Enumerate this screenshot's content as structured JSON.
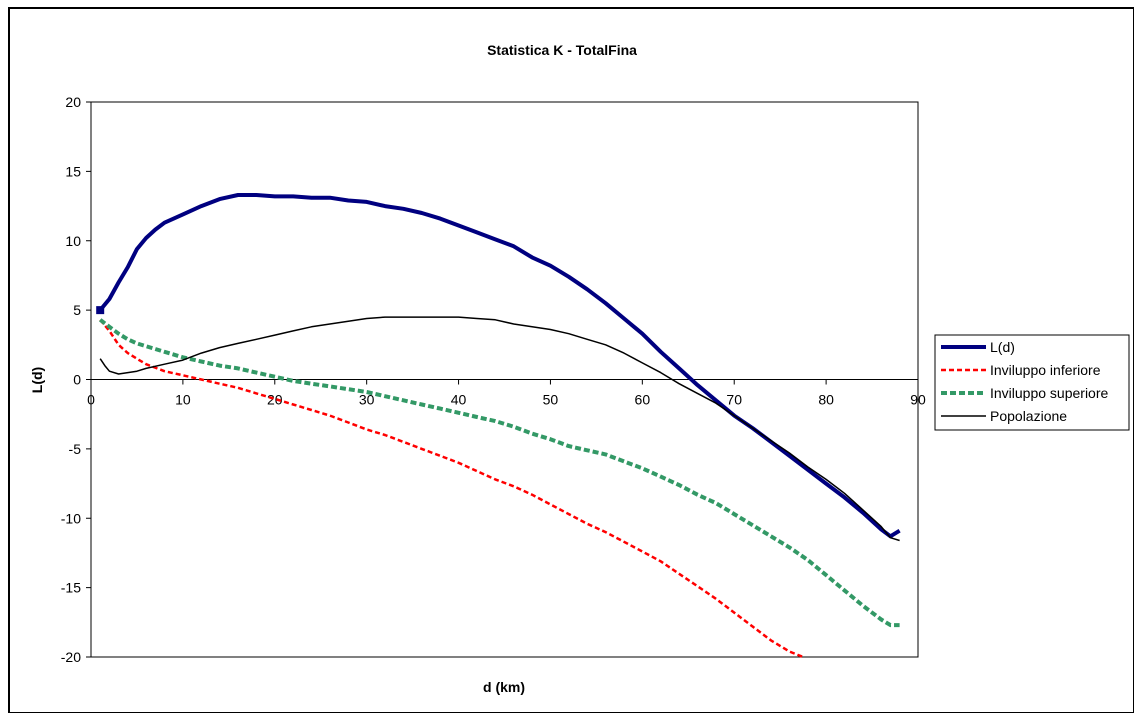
{
  "chart_data": {
    "type": "line",
    "title": "Statistica K - TotalFina",
    "xlabel": "d (km)",
    "ylabel": "L(d)",
    "xlim": [
      0,
      90
    ],
    "ylim": [
      -20,
      20
    ],
    "xticks": [
      "0",
      "10",
      "20",
      "30",
      "40",
      "50",
      "60",
      "70",
      "80",
      "90"
    ],
    "yticks": [
      "20",
      "15",
      "10",
      "5",
      "0",
      "-5",
      "-10",
      "-15",
      "-20"
    ],
    "grid": false,
    "legend_position": "right",
    "series": [
      {
        "name": "L(d)",
        "color": "#000080",
        "style": "solid-thick",
        "marker_at_start": true,
        "x": [
          1,
          2,
          3,
          4,
          5,
          6,
          7,
          8,
          9,
          10,
          12,
          14,
          16,
          18,
          20,
          22,
          24,
          26,
          28,
          30,
          32,
          34,
          36,
          38,
          40,
          42,
          44,
          46,
          48,
          50,
          52,
          54,
          56,
          58,
          60,
          62,
          64,
          66,
          68,
          70,
          72,
          74,
          76,
          78,
          80,
          82,
          84,
          86,
          87,
          88
        ],
        "y": [
          5.0,
          5.8,
          7.0,
          8.1,
          9.4,
          10.2,
          10.8,
          11.3,
          11.6,
          11.9,
          12.5,
          13.0,
          13.3,
          13.3,
          13.2,
          13.2,
          13.1,
          13.1,
          12.9,
          12.8,
          12.5,
          12.3,
          12.0,
          11.6,
          11.1,
          10.6,
          10.1,
          9.6,
          8.8,
          8.2,
          7.4,
          6.5,
          5.5,
          4.4,
          3.3,
          2.0,
          0.8,
          -0.4,
          -1.5,
          -2.6,
          -3.5,
          -4.5,
          -5.5,
          -6.5,
          -7.5,
          -8.5,
          -9.6,
          -10.8,
          -11.3,
          -10.9
        ]
      },
      {
        "name": "Inviluppo inferiore",
        "color": "#FF0000",
        "style": "dashed",
        "x": [
          1,
          2,
          3,
          4,
          5,
          6,
          8,
          10,
          12,
          14,
          16,
          18,
          20,
          22,
          24,
          26,
          28,
          30,
          32,
          34,
          36,
          38,
          40,
          42,
          44,
          46,
          48,
          50,
          52,
          54,
          56,
          58,
          60,
          62,
          64,
          66,
          68,
          70,
          72,
          74,
          76,
          77.5
        ],
        "y": [
          4.3,
          3.5,
          2.5,
          1.9,
          1.5,
          1.1,
          0.6,
          0.3,
          0.0,
          -0.3,
          -0.6,
          -1.0,
          -1.4,
          -1.8,
          -2.2,
          -2.6,
          -3.1,
          -3.6,
          -4.0,
          -4.5,
          -5.0,
          -5.5,
          -6.0,
          -6.6,
          -7.2,
          -7.7,
          -8.3,
          -9.0,
          -9.7,
          -10.4,
          -11.0,
          -11.7,
          -12.4,
          -13.1,
          -14.0,
          -14.9,
          -15.8,
          -16.8,
          -17.8,
          -18.8,
          -19.6,
          -20.0
        ]
      },
      {
        "name": "Inviluppo superiore",
        "color": "#339966",
        "style": "dashed-thick",
        "x": [
          1,
          2,
          3,
          4,
          5,
          6,
          8,
          10,
          12,
          14,
          16,
          18,
          20,
          22,
          24,
          26,
          28,
          30,
          32,
          34,
          36,
          38,
          40,
          42,
          44,
          46,
          48,
          50,
          52,
          54,
          56,
          58,
          60,
          62,
          64,
          66,
          68,
          70,
          72,
          74,
          76,
          78,
          80,
          82,
          84,
          86,
          87,
          88
        ],
        "y": [
          4.3,
          3.8,
          3.3,
          2.9,
          2.6,
          2.4,
          2.0,
          1.6,
          1.3,
          1.0,
          0.8,
          0.5,
          0.2,
          -0.1,
          -0.3,
          -0.5,
          -0.7,
          -0.9,
          -1.2,
          -1.5,
          -1.8,
          -2.1,
          -2.4,
          -2.7,
          -3.0,
          -3.4,
          -3.9,
          -4.3,
          -4.8,
          -5.1,
          -5.4,
          -5.9,
          -6.4,
          -7.0,
          -7.6,
          -8.3,
          -8.9,
          -9.7,
          -10.5,
          -11.3,
          -12.1,
          -13.0,
          -14.1,
          -15.2,
          -16.3,
          -17.3,
          -17.7,
          -17.7
        ]
      },
      {
        "name": "Popolazione",
        "color": "#000000",
        "style": "solid-thin",
        "x": [
          1,
          1.5,
          2,
          3,
          4,
          5,
          6,
          8,
          10,
          12,
          14,
          16,
          18,
          20,
          22,
          24,
          26,
          28,
          30,
          32,
          34,
          36,
          38,
          40,
          42,
          44,
          46,
          48,
          50,
          52,
          54,
          56,
          58,
          60,
          62,
          64,
          66,
          68,
          70,
          72,
          74,
          76,
          78,
          80,
          82,
          84,
          86,
          87,
          88
        ],
        "y": [
          1.5,
          1.0,
          0.6,
          0.4,
          0.5,
          0.6,
          0.8,
          1.1,
          1.4,
          1.9,
          2.3,
          2.6,
          2.9,
          3.2,
          3.5,
          3.8,
          4.0,
          4.2,
          4.4,
          4.5,
          4.5,
          4.5,
          4.5,
          4.5,
          4.4,
          4.3,
          4.0,
          3.8,
          3.6,
          3.3,
          2.9,
          2.5,
          1.9,
          1.2,
          0.5,
          -0.3,
          -1.0,
          -1.7,
          -2.6,
          -3.5,
          -4.4,
          -5.3,
          -6.3,
          -7.2,
          -8.2,
          -9.4,
          -10.6,
          -11.4,
          -11.6
        ]
      }
    ]
  }
}
